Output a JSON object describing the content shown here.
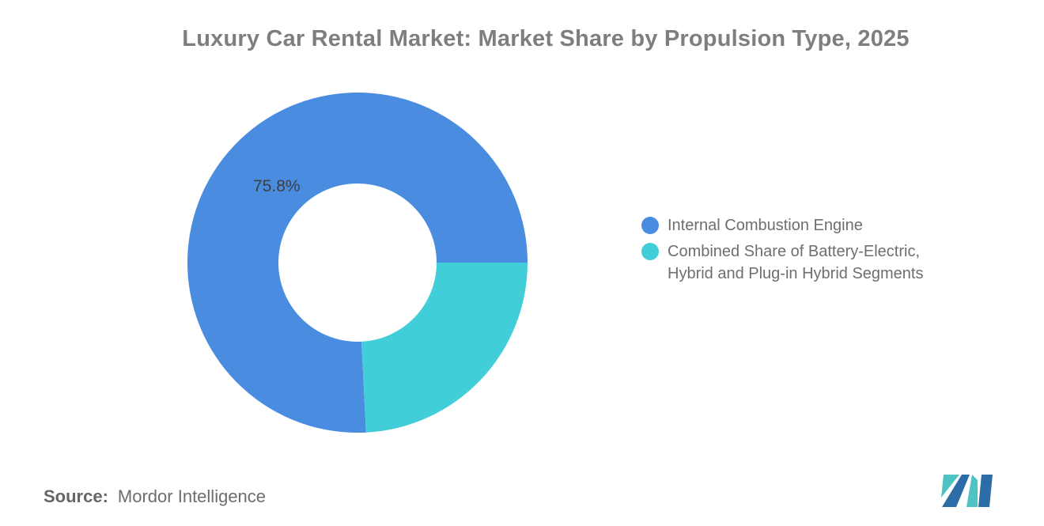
{
  "chart_data": {
    "type": "pie",
    "subtype": "donut",
    "title": "Luxury Car Rental Market: Market Share by Propulsion Type, 2025",
    "segments": [
      {
        "label": "Internal Combustion Engine",
        "value": 75.8,
        "color": "#4A8CDF",
        "data_label": "75.8%"
      },
      {
        "label": "Combined Share of Battery-Electric, Hybrid and Plug-in Hybrid Segments",
        "value": 24.2,
        "color": "#41CED8",
        "data_label": ""
      }
    ],
    "total": 100,
    "start_angle_deg_math": 0,
    "direction": "counterclockwise",
    "inner_radius_ratio": 0.465,
    "legend_position": "right",
    "background": "#FFFFFF",
    "title_color": "#7E7E7E",
    "label_color": "#3F3F3F"
  },
  "legend": {
    "items": [
      {
        "lines": [
          "Internal Combustion Engine"
        ]
      },
      {
        "lines": [
          "Combined Share of Battery-Electric,",
          "Hybrid and Plug-in Hybrid Segments"
        ]
      }
    ]
  },
  "source": {
    "label": "Source:",
    "value": "Mordor Intelligence"
  },
  "logo": {
    "name": "mordor-intelligence-logo",
    "colors": {
      "blue": "#2C6CA7",
      "teal": "#4FC3C4"
    }
  }
}
